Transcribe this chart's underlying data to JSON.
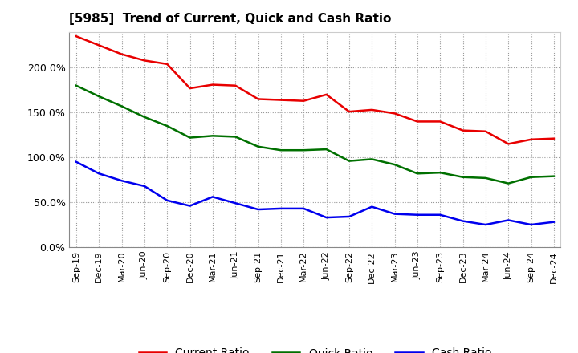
{
  "title": "[5985]  Trend of Current, Quick and Cash Ratio",
  "labels": [
    "Sep-19",
    "Dec-19",
    "Mar-20",
    "Jun-20",
    "Sep-20",
    "Dec-20",
    "Mar-21",
    "Jun-21",
    "Sep-21",
    "Dec-21",
    "Mar-22",
    "Jun-22",
    "Sep-22",
    "Dec-22",
    "Mar-23",
    "Jun-23",
    "Sep-23",
    "Dec-23",
    "Mar-24",
    "Jun-24",
    "Sep-24",
    "Dec-24"
  ],
  "current_ratio": [
    235,
    225,
    215,
    208,
    204,
    177,
    181,
    180,
    165,
    164,
    163,
    170,
    151,
    153,
    149,
    140,
    140,
    130,
    129,
    115,
    120,
    121
  ],
  "quick_ratio": [
    180,
    168,
    157,
    145,
    135,
    122,
    124,
    123,
    112,
    108,
    108,
    109,
    96,
    98,
    92,
    82,
    83,
    78,
    77,
    71,
    78,
    79
  ],
  "cash_ratio": [
    95,
    82,
    74,
    68,
    52,
    46,
    56,
    49,
    42,
    43,
    43,
    33,
    34,
    45,
    37,
    36,
    36,
    29,
    25,
    30,
    25,
    28
  ],
  "current_color": "#e80000",
  "quick_color": "#007000",
  "cash_color": "#0000ee",
  "ylim": [
    0,
    240
  ],
  "yticks": [
    0,
    50,
    100,
    150,
    200
  ],
  "background_color": "#ffffff",
  "grid_color": "#999999",
  "legend_labels": [
    "Current Ratio",
    "Quick Ratio",
    "Cash Ratio"
  ]
}
